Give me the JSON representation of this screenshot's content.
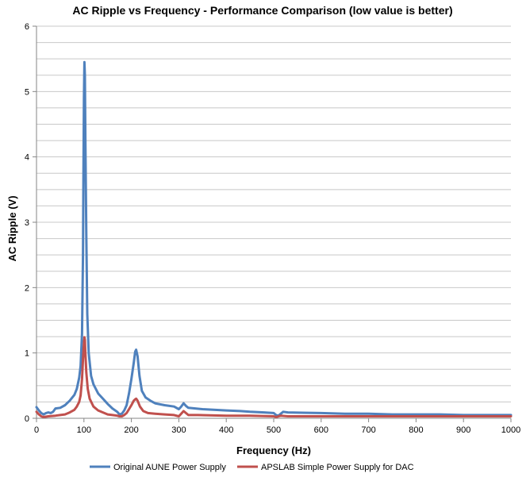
{
  "chart_data": {
    "type": "line",
    "title": "AC Ripple vs Frequency - Performance Comparison (low value is better)",
    "xlabel": "Frequency (Hz)",
    "ylabel": "AC Ripple (V)",
    "xlim": [
      0,
      1000
    ],
    "ylim": [
      0,
      6
    ],
    "xticks": [
      0,
      100,
      200,
      300,
      400,
      500,
      600,
      700,
      800,
      900,
      1000
    ],
    "yticks": [
      0,
      1,
      2,
      3,
      4,
      5,
      6
    ],
    "grid": "horizontal",
    "legend_position": "bottom",
    "series": [
      {
        "name": "Original AUNE Power Supply",
        "color": "#4f81bd",
        "points": [
          [
            0,
            0.17
          ],
          [
            5,
            0.12
          ],
          [
            10,
            0.08
          ],
          [
            15,
            0.06
          ],
          [
            20,
            0.08
          ],
          [
            25,
            0.09
          ],
          [
            30,
            0.08
          ],
          [
            35,
            0.1
          ],
          [
            40,
            0.15
          ],
          [
            50,
            0.16
          ],
          [
            60,
            0.2
          ],
          [
            70,
            0.27
          ],
          [
            80,
            0.36
          ],
          [
            85,
            0.45
          ],
          [
            90,
            0.62
          ],
          [
            93,
            0.8
          ],
          [
            96,
            1.3
          ],
          [
            98,
            2.5
          ],
          [
            99,
            3.8
          ],
          [
            100,
            4.9
          ],
          [
            101,
            5.45
          ],
          [
            102,
            5.25
          ],
          [
            103,
            4.3
          ],
          [
            105,
            2.8
          ],
          [
            107,
            1.6
          ],
          [
            110,
            1.0
          ],
          [
            115,
            0.65
          ],
          [
            120,
            0.52
          ],
          [
            130,
            0.38
          ],
          [
            140,
            0.3
          ],
          [
            150,
            0.22
          ],
          [
            160,
            0.15
          ],
          [
            170,
            0.1
          ],
          [
            175,
            0.06
          ],
          [
            180,
            0.07
          ],
          [
            185,
            0.12
          ],
          [
            190,
            0.2
          ],
          [
            195,
            0.38
          ],
          [
            200,
            0.6
          ],
          [
            205,
            0.85
          ],
          [
            208,
            1.02
          ],
          [
            210,
            1.05
          ],
          [
            213,
            0.95
          ],
          [
            217,
            0.65
          ],
          [
            222,
            0.42
          ],
          [
            230,
            0.32
          ],
          [
            240,
            0.27
          ],
          [
            250,
            0.23
          ],
          [
            270,
            0.2
          ],
          [
            290,
            0.18
          ],
          [
            300,
            0.14
          ],
          [
            305,
            0.18
          ],
          [
            310,
            0.23
          ],
          [
            315,
            0.19
          ],
          [
            320,
            0.16
          ],
          [
            350,
            0.14
          ],
          [
            400,
            0.12
          ],
          [
            430,
            0.11
          ],
          [
            450,
            0.1
          ],
          [
            480,
            0.09
          ],
          [
            500,
            0.08
          ],
          [
            505,
            0.05
          ],
          [
            510,
            0.04
          ],
          [
            515,
            0.07
          ],
          [
            520,
            0.1
          ],
          [
            530,
            0.09
          ],
          [
            600,
            0.08
          ],
          [
            650,
            0.07
          ],
          [
            700,
            0.07
          ],
          [
            750,
            0.06
          ],
          [
            800,
            0.06
          ],
          [
            850,
            0.06
          ],
          [
            900,
            0.05
          ],
          [
            950,
            0.05
          ],
          [
            1000,
            0.05
          ]
        ]
      },
      {
        "name": "APSLAB Simple Power Supply for DAC",
        "color": "#c0504d",
        "points": [
          [
            0,
            0.1
          ],
          [
            5,
            0.06
          ],
          [
            10,
            0.03
          ],
          [
            15,
            0.02
          ],
          [
            25,
            0.03
          ],
          [
            40,
            0.04
          ],
          [
            50,
            0.05
          ],
          [
            60,
            0.06
          ],
          [
            70,
            0.09
          ],
          [
            80,
            0.13
          ],
          [
            85,
            0.18
          ],
          [
            90,
            0.25
          ],
          [
            93,
            0.35
          ],
          [
            96,
            0.6
          ],
          [
            98,
            0.9
          ],
          [
            100,
            1.15
          ],
          [
            101,
            1.24
          ],
          [
            102,
            1.2
          ],
          [
            103,
            1.0
          ],
          [
            105,
            0.7
          ],
          [
            108,
            0.45
          ],
          [
            112,
            0.3
          ],
          [
            120,
            0.18
          ],
          [
            130,
            0.12
          ],
          [
            140,
            0.09
          ],
          [
            150,
            0.06
          ],
          [
            160,
            0.05
          ],
          [
            170,
            0.04
          ],
          [
            175,
            0.03
          ],
          [
            180,
            0.03
          ],
          [
            185,
            0.05
          ],
          [
            190,
            0.08
          ],
          [
            195,
            0.14
          ],
          [
            200,
            0.2
          ],
          [
            205,
            0.27
          ],
          [
            208,
            0.29
          ],
          [
            210,
            0.3
          ],
          [
            213,
            0.27
          ],
          [
            218,
            0.18
          ],
          [
            225,
            0.11
          ],
          [
            235,
            0.08
          ],
          [
            250,
            0.07
          ],
          [
            270,
            0.06
          ],
          [
            290,
            0.05
          ],
          [
            300,
            0.03
          ],
          [
            305,
            0.07
          ],
          [
            310,
            0.11
          ],
          [
            315,
            0.08
          ],
          [
            320,
            0.05
          ],
          [
            340,
            0.05
          ],
          [
            400,
            0.04
          ],
          [
            450,
            0.04
          ],
          [
            500,
            0.03
          ],
          [
            505,
            0.02
          ],
          [
            515,
            0.04
          ],
          [
            530,
            0.03
          ],
          [
            600,
            0.03
          ],
          [
            700,
            0.03
          ],
          [
            800,
            0.03
          ],
          [
            900,
            0.03
          ],
          [
            1000,
            0.03
          ]
        ]
      }
    ]
  }
}
